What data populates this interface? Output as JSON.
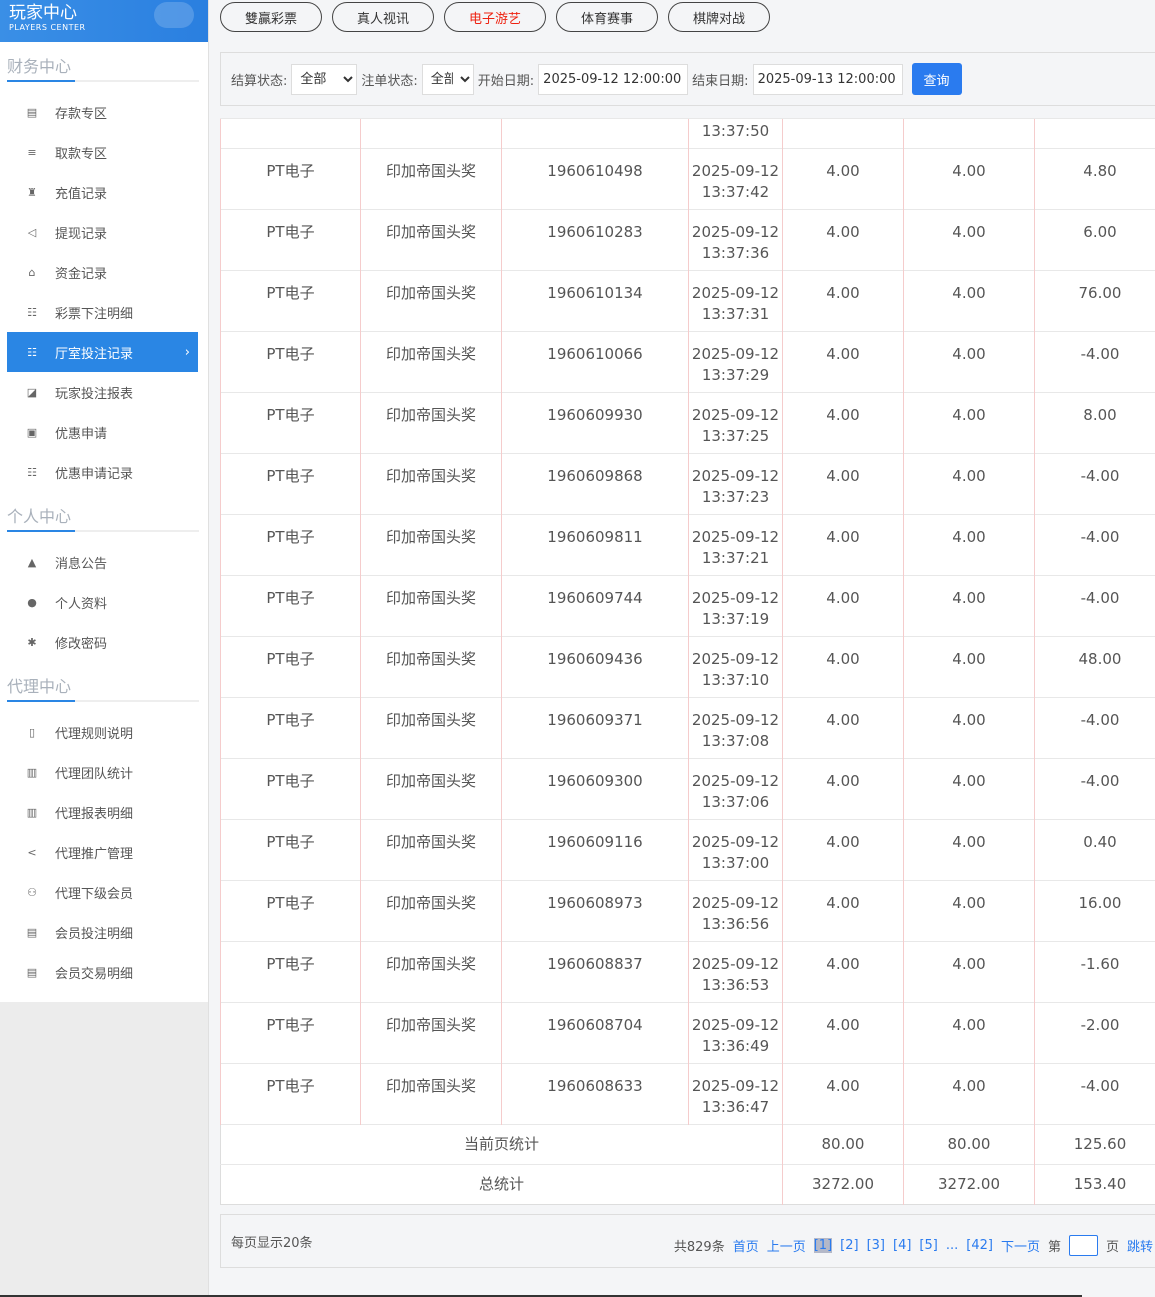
{
  "brand": {
    "title": "玩家中心",
    "subtitle": "PLAYERS CENTER"
  },
  "sidebar": {
    "sections": [
      {
        "title": "财务中心",
        "items": [
          {
            "label": "存款专区",
            "icon": "card-icon"
          },
          {
            "label": "取款专区",
            "icon": "cash-icon"
          },
          {
            "label": "充值记录",
            "icon": "bag-icon"
          },
          {
            "label": "提现记录",
            "icon": "withdraw-icon"
          },
          {
            "label": "资金记录",
            "icon": "funds-icon"
          },
          {
            "label": "彩票下注明细",
            "icon": "list-icon"
          },
          {
            "label": "厅室投注记录",
            "icon": "list-icon",
            "active": true
          },
          {
            "label": "玩家投注报表",
            "icon": "chart-icon"
          },
          {
            "label": "优惠申请",
            "icon": "gift-icon"
          },
          {
            "label": "优惠申请记录",
            "icon": "list-icon"
          }
        ]
      },
      {
        "title": "个人中心",
        "items": [
          {
            "label": "消息公告",
            "icon": "bell-icon"
          },
          {
            "label": "个人资料",
            "icon": "user-icon"
          },
          {
            "label": "修改密码",
            "icon": "gear-icon"
          }
        ]
      },
      {
        "title": "代理中心",
        "items": [
          {
            "label": "代理规则说明",
            "icon": "document-icon"
          },
          {
            "label": "代理团队统计",
            "icon": "book-icon"
          },
          {
            "label": "代理报表明细",
            "icon": "book-icon"
          },
          {
            "label": "代理推广管理",
            "icon": "share-icon"
          },
          {
            "label": "代理下级会员",
            "icon": "users-icon"
          },
          {
            "label": "会员投注明细",
            "icon": "clipboard-icon"
          },
          {
            "label": "会员交易明细",
            "icon": "clipboard-icon"
          }
        ]
      }
    ]
  },
  "tabs": [
    {
      "label": "雙贏彩票"
    },
    {
      "label": "真人视讯"
    },
    {
      "label": "电子游艺",
      "selected": true
    },
    {
      "label": "体育赛事"
    },
    {
      "label": "棋牌对战"
    }
  ],
  "filter": {
    "settle_label": "结算状态:",
    "settle_value": "全部",
    "order_label": "注单状态:",
    "order_value": "全部",
    "start_label": "开始日期:",
    "start_value": "2025-09-12 12:00:00",
    "end_label": "结束日期:",
    "end_value": "2025-09-13 12:00:00",
    "query": "查询"
  },
  "table": {
    "partial_time": "13:37:50",
    "rows": [
      [
        "PT电子",
        "印加帝国头奖",
        "1960610498",
        "2025-09-12",
        "13:37:42",
        "4.00",
        "4.00",
        "4.80"
      ],
      [
        "PT电子",
        "印加帝国头奖",
        "1960610283",
        "2025-09-12",
        "13:37:36",
        "4.00",
        "4.00",
        "6.00"
      ],
      [
        "PT电子",
        "印加帝国头奖",
        "1960610134",
        "2025-09-12",
        "13:37:31",
        "4.00",
        "4.00",
        "76.00"
      ],
      [
        "PT电子",
        "印加帝国头奖",
        "1960610066",
        "2025-09-12",
        "13:37:29",
        "4.00",
        "4.00",
        "-4.00"
      ],
      [
        "PT电子",
        "印加帝国头奖",
        "1960609930",
        "2025-09-12",
        "13:37:25",
        "4.00",
        "4.00",
        "8.00"
      ],
      [
        "PT电子",
        "印加帝国头奖",
        "1960609868",
        "2025-09-12",
        "13:37:23",
        "4.00",
        "4.00",
        "-4.00"
      ],
      [
        "PT电子",
        "印加帝国头奖",
        "1960609811",
        "2025-09-12",
        "13:37:21",
        "4.00",
        "4.00",
        "-4.00"
      ],
      [
        "PT电子",
        "印加帝国头奖",
        "1960609744",
        "2025-09-12",
        "13:37:19",
        "4.00",
        "4.00",
        "-4.00"
      ],
      [
        "PT电子",
        "印加帝国头奖",
        "1960609436",
        "2025-09-12",
        "13:37:10",
        "4.00",
        "4.00",
        "48.00"
      ],
      [
        "PT电子",
        "印加帝国头奖",
        "1960609371",
        "2025-09-12",
        "13:37:08",
        "4.00",
        "4.00",
        "-4.00"
      ],
      [
        "PT电子",
        "印加帝国头奖",
        "1960609300",
        "2025-09-12",
        "13:37:06",
        "4.00",
        "4.00",
        "-4.00"
      ],
      [
        "PT电子",
        "印加帝国头奖",
        "1960609116",
        "2025-09-12",
        "13:37:00",
        "4.00",
        "4.00",
        "0.40"
      ],
      [
        "PT电子",
        "印加帝国头奖",
        "1960608973",
        "2025-09-12",
        "13:36:56",
        "4.00",
        "4.00",
        "16.00"
      ],
      [
        "PT电子",
        "印加帝国头奖",
        "1960608837",
        "2025-09-12",
        "13:36:53",
        "4.00",
        "4.00",
        "-1.60"
      ],
      [
        "PT电子",
        "印加帝国头奖",
        "1960608704",
        "2025-09-12",
        "13:36:49",
        "4.00",
        "4.00",
        "-2.00"
      ],
      [
        "PT电子",
        "印加帝国头奖",
        "1960608633",
        "2025-09-12",
        "13:36:47",
        "4.00",
        "4.00",
        "-4.00"
      ]
    ],
    "page_sum": {
      "label": "当前页统计",
      "a": "80.00",
      "b": "80.00",
      "c": "125.60"
    },
    "total_sum": {
      "label": "总统计",
      "a": "3272.00",
      "b": "3272.00",
      "c": "153.40"
    }
  },
  "pager": {
    "per_page": "每页显示20条",
    "total": "共829条",
    "first": "首页",
    "prev": "上一页",
    "pages": [
      "[1]",
      "[2]",
      "[3]",
      "[4]",
      "[5]"
    ],
    "ellipsis": "...",
    "last_page": "[42]",
    "next": "下一页",
    "goto_prefix": "第",
    "goto_suffix": "页",
    "jump": "跳转",
    "current": 1
  },
  "colors": {
    "accent": "#2a86e4",
    "selected_tab": "#ee2211",
    "button": "#2a7bef"
  }
}
